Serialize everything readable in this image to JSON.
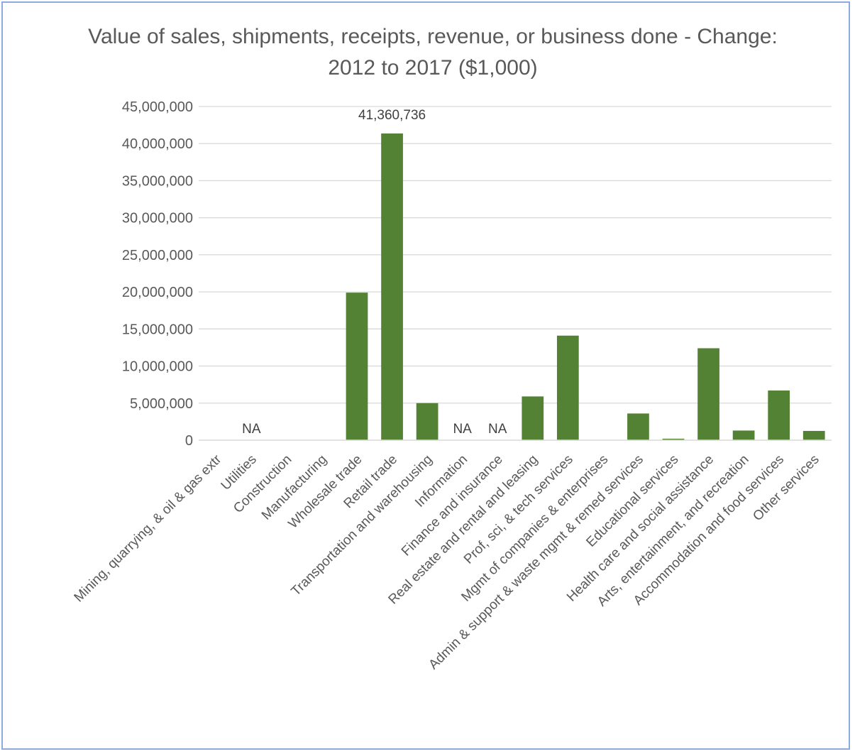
{
  "chart_data": {
    "type": "bar",
    "title": "Value of sales, shipments, receipts, revenue, or business done - Change: 2012 to 2017 ($1,000)",
    "xlabel": "",
    "ylabel": "",
    "ylim": [
      0,
      45000000
    ],
    "ytick_labels": [
      "0",
      "5,000,000",
      "10,000,000",
      "15,000,000",
      "20,000,000",
      "25,000,000",
      "30,000,000",
      "35,000,000",
      "40,000,000",
      "45,000,000"
    ],
    "grid": true,
    "legend": "none",
    "bar_color": "#548235",
    "categories": [
      "Mining, quarrying, & oil & gas extr",
      "Utilities",
      "Construction",
      "Manufacturing",
      "Wholesale trade",
      "Retail trade",
      "Transportation and warehousing",
      "Information",
      "Finance and insurance",
      "Real estate and rental and leasing",
      "Prof, sci, & tech services",
      "Mgmt of companies & enterprises",
      "Admin & support & waste mgmt & remed services",
      "Educational services",
      "Health care and social assistance",
      "Arts, entertainment, and recreation",
      "Accommodation and food services",
      "Other services"
    ],
    "values": [
      null,
      null,
      null,
      null,
      19900000,
      41360736,
      5000000,
      null,
      null,
      5900000,
      14100000,
      null,
      3600000,
      200000,
      12400000,
      1300000,
      6700000,
      1250000
    ],
    "data_labels": [
      "",
      "NA",
      "",
      "",
      "",
      "41,360,736",
      "",
      "NA",
      "NA",
      "",
      "",
      "",
      "",
      "",
      "",
      "",
      "",
      ""
    ]
  }
}
